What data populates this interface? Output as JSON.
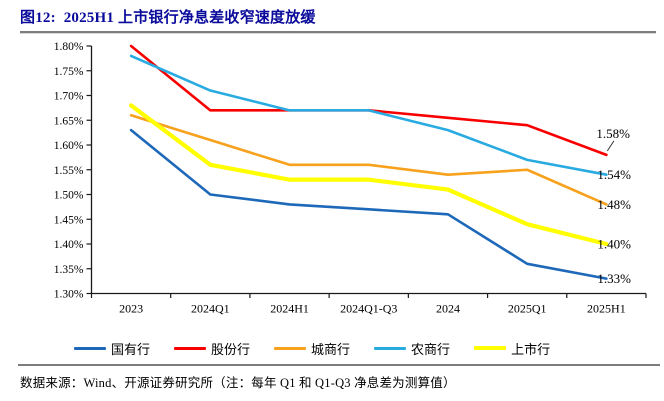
{
  "figure": {
    "title": "图12:  2025H1 上市银行净息差收窄速度放缓",
    "source_note": "数据来源：Wind、开源证券研究所（注：每年 Q1 和 Q1-Q3 净息差为测算值）"
  },
  "chart_data": {
    "type": "line",
    "title": "2025H1 上市银行净息差收窄速度放缓",
    "categories": [
      "2023",
      "2024Q1",
      "2024H1",
      "2024Q1-Q3",
      "2024",
      "2025Q1",
      "2025H1"
    ],
    "series": [
      {
        "id": "state-owned-banks",
        "name": "国有行",
        "color": "#1D68B8",
        "line_width": 2.6,
        "values": [
          1.63,
          1.5,
          1.48,
          1.47,
          1.46,
          1.36,
          1.33
        ],
        "end_label": "1.33%",
        "end_label_raised": false
      },
      {
        "id": "joint-stock-banks",
        "name": "股份行",
        "color": "#F80000",
        "line_width": 2.6,
        "values": [
          1.8,
          1.67,
          1.67,
          1.67,
          1.655,
          1.64,
          1.58
        ],
        "end_label": "1.58%",
        "end_label_raised": true
      },
      {
        "id": "city-commercial-banks",
        "name": "城商行",
        "color": "#F7A11C",
        "line_width": 2.6,
        "values": [
          1.66,
          1.61,
          1.56,
          1.56,
          1.54,
          1.55,
          1.48
        ],
        "end_label": "1.48%",
        "end_label_raised": false
      },
      {
        "id": "rural-commercial-banks",
        "name": "农商行",
        "color": "#29ABE2",
        "line_width": 2.6,
        "values": [
          1.78,
          1.71,
          1.67,
          1.67,
          1.63,
          1.57,
          1.54
        ],
        "end_label": "1.54%",
        "end_label_raised": false
      },
      {
        "id": "listed-banks",
        "name": "上市行",
        "color": "#FFFF00",
        "line_width": 4.2,
        "values": [
          1.68,
          1.56,
          1.53,
          1.53,
          1.51,
          1.44,
          1.4
        ],
        "end_label": "1.40%",
        "end_label_raised": false
      }
    ],
    "ylim": [
      1.3,
      1.8
    ],
    "ytick_step": 0.05,
    "ytick_labels": [
      "1.80%",
      "1.75%",
      "1.70%",
      "1.65%",
      "1.60%",
      "1.55%",
      "1.50%",
      "1.45%",
      "1.40%",
      "1.35%",
      "1.30%"
    ],
    "grid": false,
    "legend_position": "bottom",
    "note": "每年 Q1 和 Q1-Q3 净息差为测算值"
  },
  "colors": {
    "title": "#0A0A9B",
    "axis": "#1A1A1A",
    "divider": "#7D7D7D"
  }
}
